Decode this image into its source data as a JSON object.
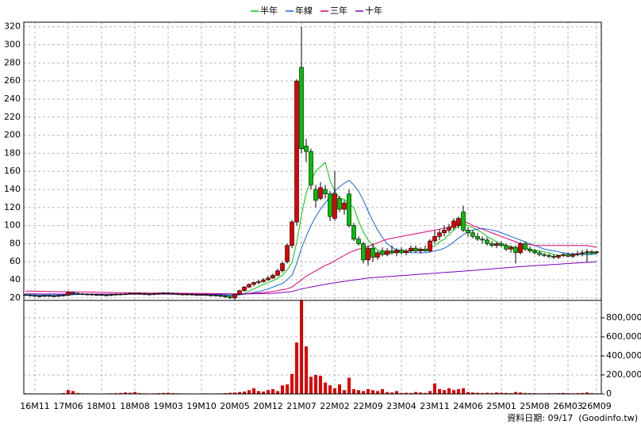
{
  "chart_data": {
    "type": "candlestick",
    "legend": "top",
    "grid": true,
    "up_color": "#e00000",
    "down_color": "#00c000",
    "volume_color": "#e00000",
    "x": [
      null,
      null,
      "16M11",
      null,
      null,
      null,
      null,
      null,
      null,
      "17M06",
      null,
      null,
      null,
      null,
      null,
      null,
      "18M01",
      null,
      null,
      null,
      null,
      null,
      null,
      "18M08",
      null,
      null,
      null,
      null,
      null,
      null,
      "19M03",
      null,
      null,
      null,
      null,
      null,
      null,
      "19M10",
      null,
      null,
      null,
      null,
      null,
      null,
      "20M05",
      null,
      null,
      null,
      null,
      null,
      null,
      "20M12",
      null,
      null,
      null,
      null,
      null,
      null,
      "21M07",
      null,
      null,
      null,
      null,
      null,
      null,
      "22M02",
      null,
      null,
      null,
      null,
      null,
      null,
      "22M09",
      null,
      null,
      null,
      null,
      null,
      null,
      "23M04",
      null,
      null,
      null,
      null,
      null,
      null,
      "23M11",
      null,
      null,
      null,
      null,
      null,
      null,
      "24M06",
      null,
      null,
      null,
      null,
      null,
      null,
      "25M01",
      null,
      null,
      null,
      null,
      null,
      null,
      "25M08",
      null,
      null,
      null,
      null,
      null,
      null,
      "26M03",
      null,
      null,
      null,
      null,
      null,
      "26M09"
    ],
    "open": [
      23.5,
      23,
      22.5,
      22,
      22,
      22.5,
      22,
      22,
      22.5,
      23,
      26,
      25,
      24.5,
      24,
      24,
      23.5,
      23.5,
      23,
      23,
      23.5,
      24,
      24,
      24.5,
      25,
      25,
      24.5,
      24,
      24,
      24.5,
      25,
      25.5,
      25,
      24.5,
      24,
      24,
      24,
      23.5,
      23.5,
      23.5,
      23,
      23,
      22.5,
      22,
      21,
      20,
      24,
      28,
      32,
      35,
      37,
      38,
      40,
      42,
      45,
      50,
      60,
      78,
      104,
      275,
      188,
      182,
      140,
      130,
      140,
      135,
      108,
      130,
      118,
      135,
      100,
      85,
      80,
      62,
      75,
      65,
      72,
      68,
      72,
      70,
      73,
      70,
      72,
      75,
      72,
      74,
      72,
      83,
      88,
      92,
      95,
      98,
      100,
      115,
      95,
      92,
      88,
      85,
      84,
      80,
      78,
      80,
      78,
      74,
      76,
      70,
      80,
      74,
      72,
      70,
      68,
      67,
      66,
      65,
      67,
      68,
      66,
      68,
      69,
      70,
      71,
      70
    ],
    "high": [
      24.5,
      24,
      23.5,
      23,
      23.5,
      23.5,
      23,
      23.5,
      24,
      27.5,
      27,
      26,
      25.5,
      25,
      25,
      24.5,
      24.5,
      24,
      24.5,
      25,
      25,
      25.5,
      26,
      26,
      26,
      25.5,
      25,
      25.5,
      26,
      26.5,
      26.5,
      26,
      25.5,
      25,
      25,
      25,
      24.5,
      24.5,
      24.5,
      24,
      24,
      23.5,
      23,
      22,
      25,
      29,
      33,
      36,
      38,
      40,
      42,
      44,
      47,
      52,
      60,
      80,
      106,
      262,
      320,
      196,
      185,
      145,
      148,
      145,
      138,
      160,
      133,
      128,
      140,
      103,
      88,
      82,
      78,
      80,
      72,
      76,
      75,
      78,
      75,
      76,
      74,
      78,
      78,
      76,
      78,
      85,
      95,
      96,
      100,
      102,
      108,
      110,
      122,
      98,
      95,
      92,
      88,
      87,
      83,
      82,
      83,
      80,
      78,
      78,
      82,
      82,
      77,
      74,
      72,
      70,
      69,
      68,
      68,
      70,
      70,
      70,
      72,
      73,
      74,
      73,
      72
    ],
    "low": [
      22,
      21.5,
      21,
      21,
      21,
      21,
      21,
      21,
      21.5,
      22,
      24,
      23.5,
      23,
      23,
      22.5,
      22.5,
      22,
      22,
      22,
      22.5,
      23,
      23,
      23.5,
      24,
      23.5,
      23,
      23,
      23,
      23.5,
      24,
      24,
      23.5,
      23,
      23,
      23,
      22.5,
      22.5,
      22.5,
      22,
      22,
      21.5,
      21,
      20,
      19,
      18,
      23,
      27,
      31,
      33,
      35,
      37,
      39,
      41,
      44,
      48,
      58,
      75,
      100,
      180,
      170,
      140,
      120,
      128,
      130,
      105,
      105,
      115,
      112,
      98,
      83,
      78,
      58,
      56,
      60,
      62,
      66,
      66,
      68,
      66,
      68,
      67,
      70,
      70,
      69,
      71,
      70,
      80,
      84,
      88,
      92,
      95,
      97,
      93,
      88,
      86,
      83,
      80,
      78,
      76,
      75,
      76,
      72,
      70,
      58,
      68,
      72,
      70,
      68,
      66,
      65,
      64,
      63,
      63,
      65,
      65,
      64,
      66,
      66,
      60,
      68,
      68
    ],
    "close": [
      23,
      22.5,
      22,
      22,
      22.5,
      22,
      22,
      22.5,
      23,
      26,
      25,
      24.5,
      24,
      24,
      23.5,
      23.5,
      23,
      23,
      23.5,
      24,
      24,
      24.5,
      25,
      25,
      24.5,
      24,
      24,
      24.5,
      25,
      25.5,
      25,
      24.5,
      24,
      24,
      24,
      23.5,
      23.5,
      23.5,
      23,
      23,
      22.5,
      22,
      21,
      20,
      24,
      28,
      32,
      35,
      37,
      38,
      40,
      42,
      45,
      50,
      58,
      78,
      104,
      260,
      185,
      182,
      145,
      128,
      142,
      135,
      110,
      135,
      118,
      125,
      100,
      85,
      80,
      62,
      75,
      65,
      70,
      68,
      72,
      70,
      73,
      70,
      72,
      75,
      72,
      74,
      72,
      83,
      88,
      92,
      95,
      98,
      105,
      108,
      95,
      92,
      88,
      85,
      84,
      80,
      78,
      80,
      78,
      74,
      76,
      70,
      80,
      74,
      72,
      70,
      68,
      67,
      66,
      65,
      67,
      68,
      66,
      68,
      69,
      70,
      71,
      70,
      71
    ],
    "volume": [
      6000,
      5000,
      5000,
      4000,
      5000,
      4000,
      4000,
      5000,
      8000,
      40000,
      30000,
      10000,
      6000,
      5000,
      5000,
      4000,
      4000,
      5000,
      6000,
      8000,
      10000,
      15000,
      12000,
      20000,
      8000,
      6000,
      5000,
      6000,
      8000,
      10000,
      12000,
      8000,
      6000,
      5000,
      5000,
      4000,
      4000,
      5000,
      6000,
      5000,
      5000,
      6000,
      8000,
      12000,
      15000,
      20000,
      25000,
      40000,
      60000,
      30000,
      25000,
      40000,
      50000,
      30000,
      90000,
      100000,
      210000,
      540000,
      980000,
      500000,
      180000,
      200000,
      190000,
      120000,
      90000,
      60000,
      100000,
      40000,
      170000,
      50000,
      40000,
      30000,
      50000,
      40000,
      30000,
      50000,
      20000,
      15000,
      30000,
      10000,
      12000,
      10000,
      20000,
      15000,
      10000,
      30000,
      110000,
      50000,
      40000,
      60000,
      40000,
      50000,
      60000,
      20000,
      15000,
      12000,
      10000,
      12000,
      10000,
      15000,
      12000,
      10000,
      8000,
      20000,
      15000,
      10000,
      8000,
      8000,
      6000,
      6000,
      8000,
      6000,
      8000,
      10000,
      8000,
      6000,
      8000,
      10000,
      15000,
      8000,
      6000
    ],
    "ylim": [
      19,
      325
    ],
    "yticks": [
      20,
      40,
      60,
      80,
      100,
      120,
      140,
      160,
      180,
      200,
      220,
      240,
      260,
      280,
      300,
      320
    ],
    "y2lim": [
      0,
      1000000
    ],
    "y2ticks": [
      0,
      {
        "value": 200000,
        "label": "200,000"
      },
      {
        "value": 400000,
        "label": "400,000"
      },
      {
        "value": 600000,
        "label": "600,000"
      },
      {
        "value": 800000,
        "label": "800,000"
      }
    ],
    "series": [
      {
        "name": "半年",
        "color": "#00c800",
        "values": [
          23,
          23,
          22.5,
          22.5,
          22.5,
          22.5,
          22.3,
          22.3,
          22.5,
          23,
          23.5,
          24,
          24.3,
          24.3,
          24,
          23.8,
          23.5,
          23.5,
          23.5,
          23.6,
          23.8,
          24,
          24.3,
          24.5,
          24.6,
          24.6,
          24.5,
          24.5,
          24.6,
          24.8,
          24.9,
          24.8,
          24.6,
          24.4,
          24.2,
          24,
          23.8,
          23.6,
          23.5,
          23.3,
          23.1,
          22.8,
          22.4,
          22,
          22.5,
          23.5,
          25,
          27.5,
          30,
          32.5,
          35,
          37,
          39,
          42,
          45,
          51,
          59,
          81,
          112,
          136,
          150,
          160,
          165,
          170,
          150,
          138,
          130,
          129,
          124,
          120,
          105,
          93,
          84,
          78,
          73,
          70,
          69,
          70,
          70,
          71,
          71,
          72,
          72,
          73,
          73,
          75,
          78,
          82,
          85,
          90,
          95,
          100,
          102,
          100,
          98,
          95,
          92,
          88,
          85,
          82,
          80,
          78,
          77,
          75,
          75,
          75,
          74,
          73,
          72,
          71,
          70,
          68,
          67,
          67,
          67,
          67,
          68,
          68,
          69,
          69,
          70
        ]
      },
      {
        "name": "年線",
        "color": "#1464dc",
        "values": [
          23.5,
          23.4,
          23.3,
          23.2,
          23.2,
          23.2,
          23.2,
          23.3,
          23.4,
          23.5,
          23.6,
          23.7,
          23.8,
          23.8,
          23.8,
          23.8,
          23.8,
          23.9,
          24,
          24.1,
          24.2,
          24.3,
          24.4,
          24.5,
          24.5,
          24.5,
          24.5,
          24.5,
          24.5,
          24.5,
          24.4,
          24.4,
          24.3,
          24.2,
          24.1,
          24,
          23.9,
          23.8,
          23.7,
          23.6,
          23.5,
          23.4,
          23.2,
          23,
          23,
          23.5,
          24,
          25,
          26,
          27,
          28.5,
          30,
          32,
          34,
          36,
          40,
          45,
          58,
          75,
          88,
          100,
          110,
          118,
          125,
          132,
          138,
          143,
          147,
          150,
          145,
          138,
          128,
          116,
          105,
          95,
          87,
          80,
          76,
          73,
          72,
          71,
          70,
          70,
          70,
          70,
          71,
          72,
          73,
          75,
          78,
          82,
          86,
          90,
          93,
          95,
          96,
          97,
          96,
          95,
          94,
          92,
          90,
          88,
          86,
          84,
          82,
          80,
          78,
          76,
          74,
          73,
          72,
          71,
          70,
          69,
          69,
          68,
          68,
          68,
          68,
          69
        ]
      },
      {
        "name": "三年",
        "color": "#e0006e",
        "values": [
          27.5,
          27.5,
          27.4,
          27.3,
          27.2,
          27.1,
          27,
          26.9,
          26.8,
          26.8,
          26.8,
          26.7,
          26.6,
          26.5,
          26.4,
          26.3,
          26.2,
          26.1,
          26,
          25.9,
          25.8,
          25.7,
          25.7,
          25.6,
          25.6,
          25.5,
          25.5,
          25.4,
          25.4,
          25.3,
          25.3,
          25.2,
          25.2,
          25.1,
          25.1,
          25,
          25,
          24.9,
          24.9,
          24.8,
          24.8,
          24.7,
          24.6,
          24.5,
          24.5,
          24.5,
          24.5,
          25,
          25,
          25.5,
          26,
          26.5,
          27,
          28,
          29,
          30,
          32,
          36,
          40,
          44,
          47,
          50,
          53,
          56,
          58,
          61,
          64,
          67,
          70,
          72,
          74,
          75,
          77,
          79,
          81,
          83,
          85,
          86,
          87,
          88,
          89,
          90,
          91,
          92,
          93,
          94,
          95,
          96,
          97,
          98,
          100,
          102,
          104,
          103,
          100,
          98,
          96,
          94,
          92,
          90,
          88,
          86,
          84,
          82,
          80,
          79,
          79,
          78,
          78,
          78,
          78,
          78,
          78,
          78,
          78,
          78,
          78,
          78,
          78,
          77,
          76
        ]
      },
      {
        "name": "十年",
        "color": "#8000c0",
        "values": [
          24.5,
          24.5,
          24.5,
          24.4,
          24.4,
          24.4,
          24.3,
          24.3,
          24.3,
          24.3,
          24.3,
          24.3,
          24.3,
          24.3,
          24.3,
          24.3,
          24.3,
          24.3,
          24.3,
          24.3,
          24.2,
          24.2,
          24.2,
          24.2,
          24.2,
          24.2,
          24.2,
          24.2,
          24.2,
          24.2,
          24.1,
          24.1,
          24.1,
          24.1,
          24.1,
          24.1,
          24.1,
          24.1,
          24.1,
          24.1,
          24.1,
          24.1,
          24.1,
          24.1,
          24.2,
          24.3,
          24.4,
          24.5,
          24.6,
          24.7,
          24.8,
          24.9,
          25,
          25.5,
          26,
          26.5,
          27,
          28.5,
          30,
          31,
          32,
          33,
          34,
          35,
          36,
          36.8,
          37.5,
          38.3,
          39,
          39.8,
          40.5,
          41.3,
          42,
          42.4,
          42.8,
          43.1,
          43.5,
          43.9,
          44.3,
          44.6,
          45,
          45.4,
          45.8,
          46.2,
          46.5,
          46.9,
          47.3,
          47.7,
          48.1,
          48.5,
          48.8,
          49.2,
          49.6,
          50,
          50.4,
          50.8,
          51.3,
          51.7,
          52.1,
          52.5,
          52.9,
          53.3,
          53.8,
          54.2,
          54.6,
          55,
          55.3,
          55.7,
          56,
          56.3,
          56.7,
          57,
          57.3,
          57.7,
          58,
          58.3,
          58.7,
          59,
          59.3,
          59.7,
          60
        ]
      }
    ],
    "footnote": "資料日期: 09/17  (Goodinfo.tw)"
  }
}
